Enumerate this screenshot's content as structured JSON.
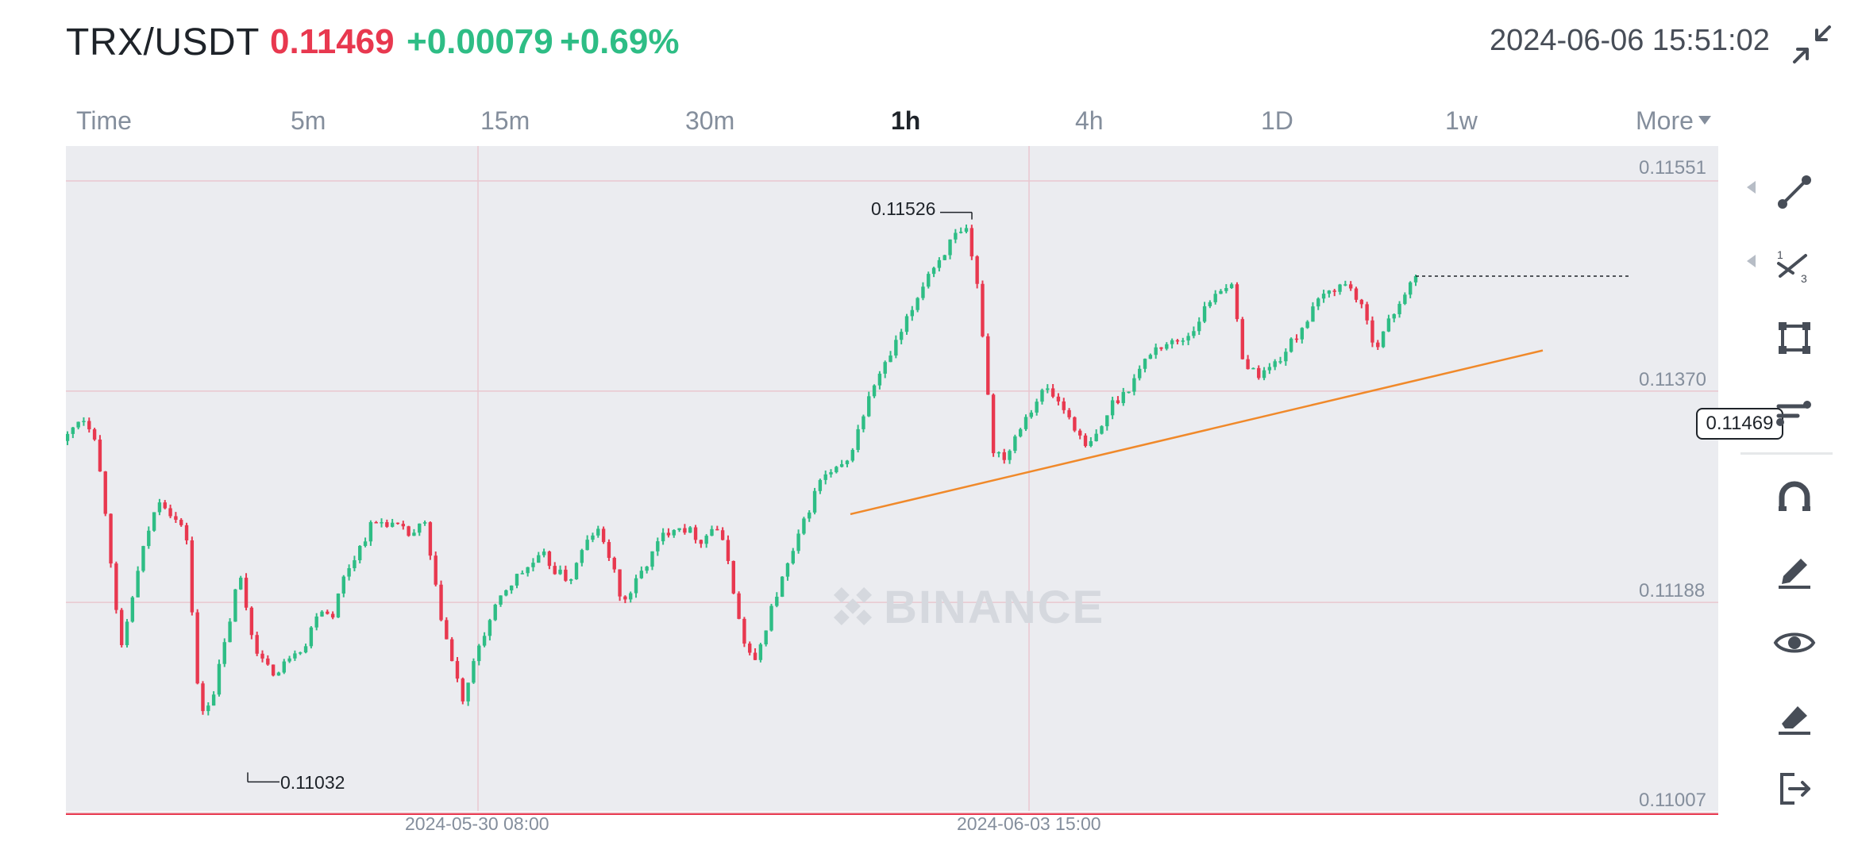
{
  "header": {
    "pair": "TRX/USDT",
    "price": "0.11469",
    "change": "+0.00079",
    "change_pct": "+0.69%",
    "datetime": "2024-06-06 15:51:02",
    "exit_fullscreen_icon": "exit-fullscreen-icon"
  },
  "intervals": [
    {
      "label": "Time",
      "active": false
    },
    {
      "label": "5m",
      "active": false
    },
    {
      "label": "15m",
      "active": false
    },
    {
      "label": "30m",
      "active": false
    },
    {
      "label": "1h",
      "active": true
    },
    {
      "label": "4h",
      "active": false
    },
    {
      "label": "1D",
      "active": false
    },
    {
      "label": "1w",
      "active": false
    },
    {
      "label": "More",
      "active": false
    }
  ],
  "chart": {
    "watermark": "BINANCE",
    "price_axis": [
      "0.11551",
      "0.11370",
      "0.11188",
      "0.11007"
    ],
    "time_axis": [
      "2024-05-30 08:00",
      "2024-06-03 15:00"
    ],
    "current_price_tag": "0.11469",
    "high_annotation": "0.11526",
    "low_annotation": "0.11032",
    "colors": {
      "up": "#2ebd85",
      "down": "#e8384f",
      "trendline": "#f0892a",
      "grid": "#e9c7cf",
      "background": "#ebecf0"
    }
  },
  "chart_data": {
    "type": "candlestick",
    "symbol": "TRX/USDT",
    "interval": "1h",
    "ylim": [
      0.11007,
      0.11551
    ],
    "y_ticks": [
      0.11551,
      0.1137,
      0.11188,
      0.11007
    ],
    "x_ticks": [
      "2024-05-30 08:00",
      "2024-06-03 15:00"
    ],
    "last_price": 0.11469,
    "high": 0.11526,
    "low": 0.11032,
    "close_path": [
      0.11331,
      0.11349,
      0.11336,
      0.11257,
      0.11142,
      0.11198,
      0.11246,
      0.11279,
      0.11262,
      0.11245,
      0.1109,
      0.11109,
      0.11157,
      0.11214,
      0.11157,
      0.11131,
      0.11127,
      0.11147,
      0.1115,
      0.11185,
      0.11176,
      0.11213,
      0.11233,
      0.11255,
      0.11258,
      0.11252,
      0.11245,
      0.11257,
      0.11189,
      0.1114,
      0.111,
      0.11148,
      0.11173,
      0.11197,
      0.1121,
      0.1122,
      0.11228,
      0.11214,
      0.11207,
      0.11234,
      0.11252,
      0.11228,
      0.11186,
      0.11205,
      0.11225,
      0.11245,
      0.11255,
      0.1125,
      0.11241,
      0.11256,
      0.11224,
      0.11159,
      0.11134,
      0.11174,
      0.11206,
      0.11234,
      0.11266,
      0.11295,
      0.113,
      0.11308,
      0.11343,
      0.11375,
      0.11395,
      0.11418,
      0.11443,
      0.1147,
      0.11484,
      0.11502,
      0.11506,
      0.1145,
      0.1132,
      0.11313,
      0.1134,
      0.11357,
      0.11373,
      0.1136,
      0.11344,
      0.1132,
      0.11333,
      0.11359,
      0.11369,
      0.11386,
      0.11405,
      0.11411,
      0.11412,
      0.1142,
      0.1144,
      0.11458,
      0.11463,
      0.11394,
      0.11384,
      0.1139,
      0.11402,
      0.11418,
      0.11436,
      0.11452,
      0.1146,
      0.11462,
      0.11438,
      0.11408,
      0.1143,
      0.11452,
      0.11469
    ],
    "trendline": {
      "color": "orange",
      "from": {
        "time": "2024-06-03",
        "price": 0.11264
      },
      "to": {
        "price": 0.11405
      }
    }
  },
  "toolbar": [
    {
      "name": "trend-line-tool-icon",
      "has_submenu": true
    },
    {
      "name": "fibonacci-tool-icon",
      "has_submenu": true
    },
    {
      "name": "rectangle-tool-icon",
      "has_submenu": false
    },
    {
      "name": "price-range-tool-icon",
      "has_submenu": false
    },
    {
      "name": "magnet-icon",
      "has_submenu": false
    },
    {
      "name": "brush-icon",
      "has_submenu": false
    },
    {
      "name": "eye-icon",
      "has_submenu": false
    },
    {
      "name": "eraser-icon",
      "has_submenu": false
    },
    {
      "name": "exit-drawing-icon",
      "has_submenu": false
    }
  ]
}
